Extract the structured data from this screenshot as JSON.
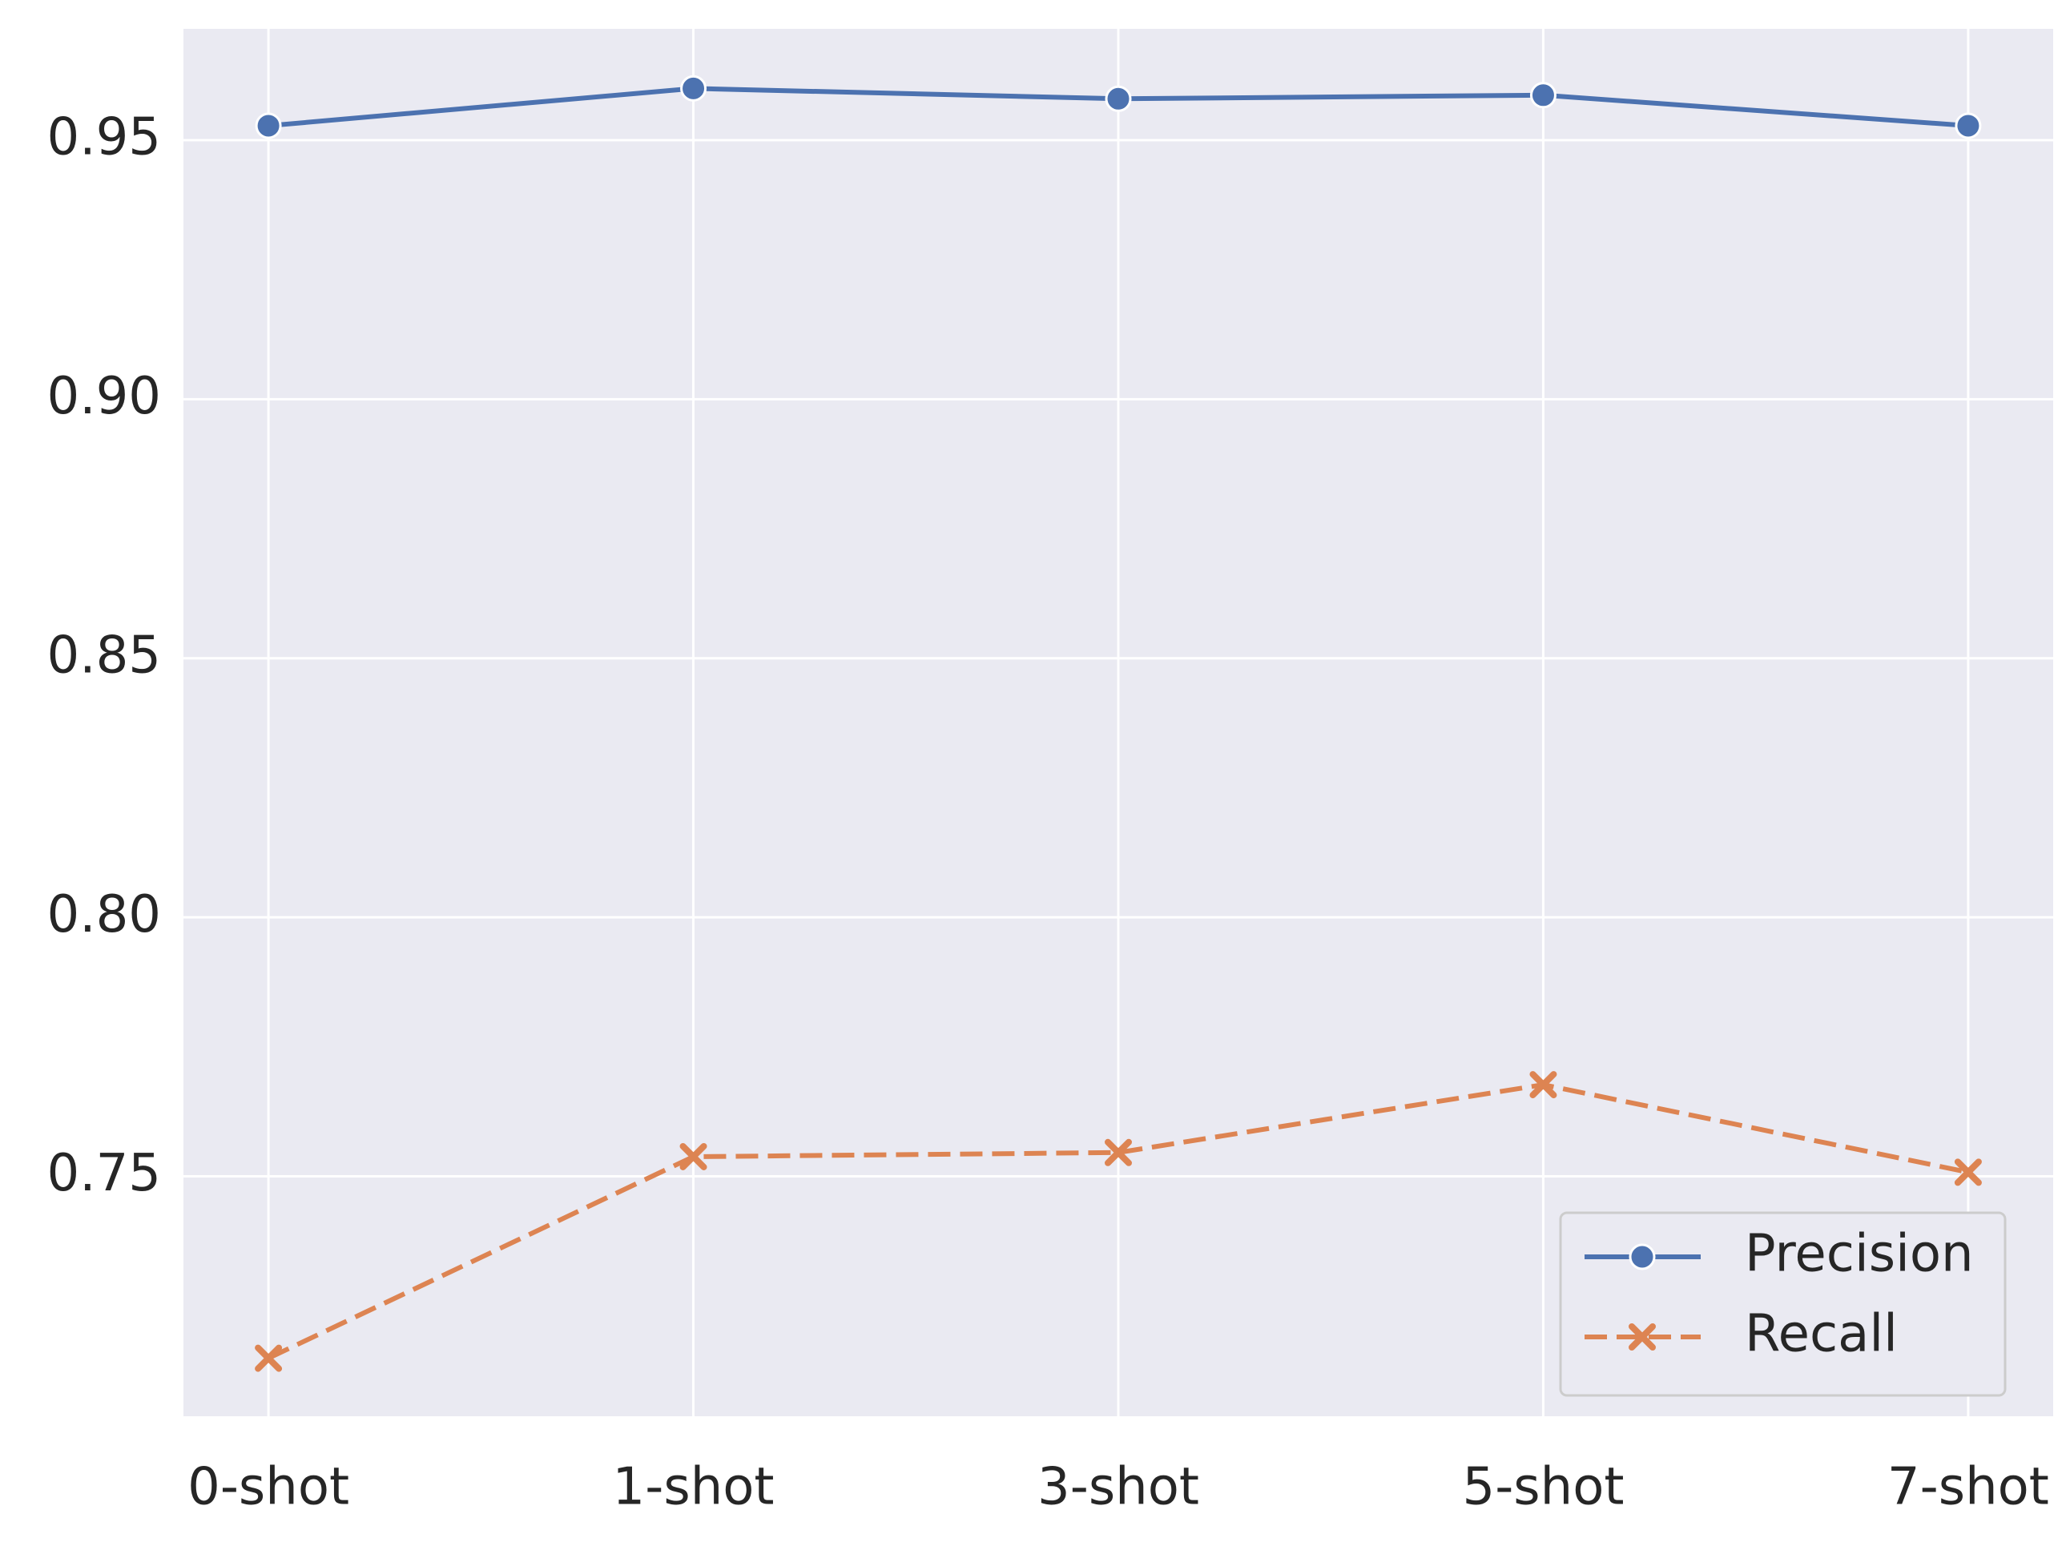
{
  "chart_data": {
    "type": "line",
    "categories": [
      "0-shot",
      "1-shot",
      "3-shot",
      "5-shot",
      "7-shot"
    ],
    "series": [
      {
        "name": "Precision",
        "color": "#4c72b0",
        "marker": "circle",
        "dash": false,
        "values": [
          0.9528,
          0.96,
          0.958,
          0.9587,
          0.9528
        ]
      },
      {
        "name": "Recall",
        "color": "#dd8452",
        "marker": "x",
        "dash": true,
        "values": [
          0.7149,
          0.7538,
          0.7546,
          0.7677,
          0.7508
        ]
      }
    ],
    "ylim": [
      0.7037,
      0.9715
    ],
    "yticks": [
      0.75,
      {
        "value": 0.8,
        "label": "0.80"
      },
      0.85,
      {
        "value": 0.9,
        "label": "0.90"
      },
      0.95
    ],
    "grid": true,
    "legend": "lower right"
  }
}
